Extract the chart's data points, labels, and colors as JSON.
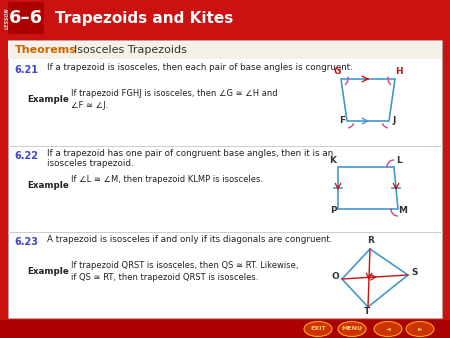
{
  "title": "6–6  Trapezoids and Kites",
  "header_bg": "#cc1111",
  "header_text_color": "#ffffff",
  "lesson_label": "LESSON",
  "section_title_theorems": "Theorems",
  "section_title_rest": "Isosceles Trapezoids",
  "section_title_color_theorems": "#cc6600",
  "section_title_color_rest": "#333333",
  "bg_color": "#ffffff",
  "outer_bg": "#cc1111",
  "theorems": [
    {
      "number": "6.21",
      "statement": "If a trapezoid is isosceles, then each pair of base angles is congruent.",
      "example_label": "Example",
      "example_text": "If trapezoid FGHJ is isosceles, then ∠G ≅ ∠H and\n∠F ≅ ∠J."
    },
    {
      "number": "6.22",
      "statement": "If a trapezoid has one pair of congruent base angles, then it is an\nisosceles trapezoid.",
      "example_label": "Example",
      "example_text": "If ∠L ≅ ∠M, then trapezoid KLMP is isosceles."
    },
    {
      "number": "6.23",
      "statement": "A trapezoid is isosceles if and only if its diagonals are congruent.",
      "example_label": "Example",
      "example_text": "If trapezoid QRST is isosceles, then QS ≅ RT. Likewise,\nif QS ≅ RT, then trapezoid QRST is isosceles."
    }
  ],
  "number_color": "#4444cc",
  "line_color": "#cccccc"
}
